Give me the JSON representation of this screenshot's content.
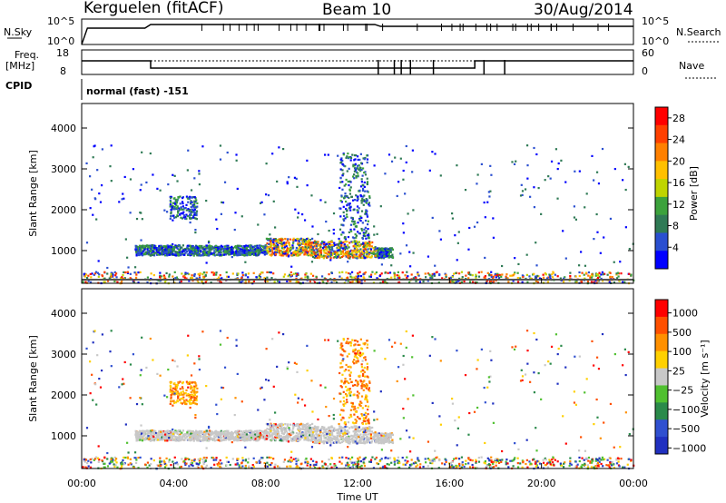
{
  "header": {
    "station": "Kerguelen (fitACF)",
    "beam": "Beam 10",
    "date": "30/Aug/2014"
  },
  "top_panels": {
    "nsky_label": "N.Sky",
    "nsky_ticks": [
      "10^5",
      "10^0"
    ],
    "nsearch_label": "N.Search",
    "nsearch_ticks": [
      "10^5",
      "10^0"
    ],
    "freq_label_line1": "Freq.",
    "freq_label_line2": "[MHz]",
    "freq_ticks": [
      "18",
      "8"
    ],
    "nave_label": "Nave",
    "nave_ticks": [
      "60",
      "0"
    ],
    "cpid_label": "CPID",
    "cpid_value": "normal (fast) -151"
  },
  "chart_data": [
    {
      "type": "heatmap",
      "name": "power",
      "ylabel": "Slant Range [km]",
      "y_ticks": [
        "1000",
        "2000",
        "3000",
        "4000"
      ],
      "ylim": [
        200,
        4600
      ],
      "x_ticks": [
        "00:00",
        "04:00",
        "08:00",
        "12:00",
        "16:00",
        "20:00",
        "00:00"
      ],
      "xlim_hours": [
        0,
        24
      ],
      "colorbar": {
        "label": "Power [dB]",
        "ticks": [
          "4",
          "8",
          "12",
          "16",
          "20",
          "24",
          "28"
        ],
        "range": [
          0,
          30
        ],
        "colors": [
          "#0000ff",
          "#2a4fd0",
          "#2f7a55",
          "#3ca23c",
          "#bfd400",
          "#ffc000",
          "#ff8000",
          "#ff4000",
          "#ff0000"
        ]
      },
      "features": [
        {
          "hours": [
            2.3,
            13.5
          ],
          "range_km": [
            800,
            1400
          ],
          "dominant": "blue/green, yellow-orange near 8-13 UT"
        },
        {
          "hours": [
            3.8,
            5.0
          ],
          "range_km": [
            1800,
            2400
          ],
          "dominant": "blue/green"
        },
        {
          "hours": [
            11.0,
            12.8
          ],
          "range_km": [
            1400,
            3400
          ],
          "dominant": "blue/green"
        }
      ]
    },
    {
      "type": "heatmap",
      "name": "velocity",
      "ylabel": "Slant Range [km]",
      "y_ticks": [
        "1000",
        "2000",
        "3000",
        "4000"
      ],
      "ylim": [
        200,
        4600
      ],
      "x_ticks": [
        "00:00",
        "04:00",
        "08:00",
        "12:00",
        "16:00",
        "20:00",
        "00:00"
      ],
      "xlim_hours": [
        0,
        24
      ],
      "xlabel": "Time UT",
      "colorbar": {
        "label": "Velocity [m s⁻¹]",
        "ticks": [
          "1000",
          "500",
          "100",
          "25",
          "−25",
          "−100",
          "−500",
          "−1000"
        ],
        "colors": [
          "#2030c0",
          "#3050d0",
          "#2a8a4a",
          "#50c030",
          "#c8c8c8",
          "#ffd000",
          "#ff9000",
          "#ff5000",
          "#ff0000"
        ]
      },
      "features": [
        {
          "hours": [
            2.3,
            13.5
          ],
          "range_km": [
            900,
            1300
          ],
          "dominant": "grey (ground scatter)"
        },
        {
          "hours": [
            3.5,
            5.0
          ],
          "range_km": [
            1600,
            2400
          ],
          "dominant": "orange"
        },
        {
          "hours": [
            11.0,
            12.5
          ],
          "range_km": [
            1300,
            3400
          ],
          "dominant": "orange/yellow"
        }
      ]
    }
  ]
}
